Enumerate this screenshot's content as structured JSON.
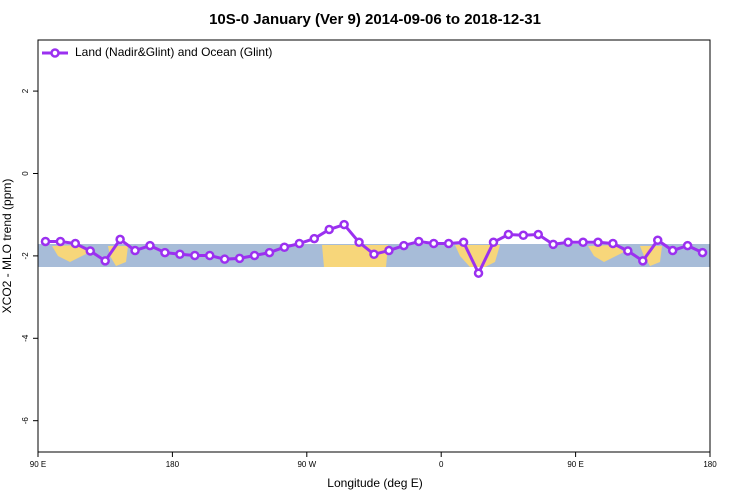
{
  "chart_data": {
    "type": "line",
    "title": "10S-0 January (Ver 9)   2014-09-06 to 2018-12-31",
    "xlabel": "Longitude (deg E)",
    "ylabel": "XCO2 - MLO trend (ppm)",
    "xlim": [
      90,
      540
    ],
    "ylim": [
      -6.76,
      3.24
    ],
    "xticks": [
      {
        "value": 90,
        "label": "90 E"
      },
      180,
      {
        "value": 270,
        "label": "90 W"
      },
      {
        "value": 360,
        "label": "0"
      },
      {
        "value": 450,
        "label": "90 E"
      },
      {
        "value": 540,
        "label": "180"
      }
    ],
    "yticks": [
      2,
      0,
      -2,
      -4,
      -6
    ],
    "legend": "upper left",
    "x": [
      95,
      105,
      115,
      125,
      135,
      145,
      155,
      165,
      175,
      185,
      195,
      205,
      215,
      225,
      235,
      245,
      255,
      265,
      275,
      285,
      295,
      305,
      315,
      325,
      335,
      345,
      355,
      365,
      375,
      385,
      395,
      405,
      415,
      425,
      435,
      445,
      455,
      465,
      475,
      485,
      495,
      505,
      515,
      525,
      535
    ],
    "series": [
      {
        "name": "Land (Nadir&Glint) and Ocean (Glint)",
        "color": "#9b30f0",
        "values": [
          -1.65,
          -1.65,
          -1.7,
          -1.88,
          -2.12,
          -1.6,
          -1.87,
          -1.75,
          -1.92,
          -1.96,
          -1.99,
          -1.99,
          -2.08,
          -2.06,
          -1.99,
          -1.92,
          -1.79,
          -1.7,
          -1.58,
          -1.36,
          -1.24,
          -1.67,
          -1.96,
          -1.87,
          -1.75,
          -1.65,
          -1.7,
          -1.7,
          -1.67,
          -2.42,
          -1.67,
          -1.48,
          -1.5,
          -1.48,
          -1.72,
          -1.67,
          -1.67,
          -1.67,
          -1.7,
          -1.88,
          -2.12,
          -1.62,
          -1.87,
          -1.75,
          -1.92
        ]
      }
    ]
  }
}
